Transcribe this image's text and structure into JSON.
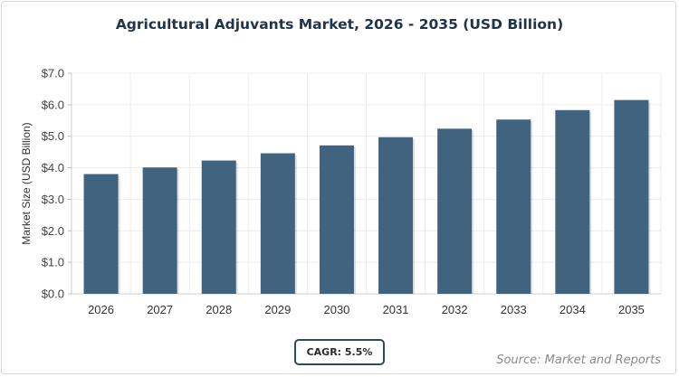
{
  "chart_data": {
    "type": "bar",
    "title": "Agricultural Adjuvants Market, 2026 - 2035 (USD Billion)",
    "xlabel": "",
    "ylabel": "Market Size (USD Billion)",
    "categories": [
      "2026",
      "2027",
      "2028",
      "2029",
      "2030",
      "2031",
      "2032",
      "2033",
      "2034",
      "2035"
    ],
    "values": [
      3.8,
      4.01,
      4.23,
      4.46,
      4.71,
      4.97,
      5.24,
      5.53,
      5.83,
      6.15
    ],
    "ylim": [
      0,
      7
    ],
    "yticks": [
      0,
      1,
      2,
      3,
      4,
      5,
      6,
      7
    ],
    "ytick_labels": [
      "$0.0",
      "$1.0",
      "$2.0",
      "$3.0",
      "$4.0",
      "$5.0",
      "$6.0",
      "$7.0"
    ],
    "grid": true,
    "bar_color": "#40637f"
  },
  "cagr_label": "CAGR: 5.5%",
  "source": "Source: Market and Reports"
}
